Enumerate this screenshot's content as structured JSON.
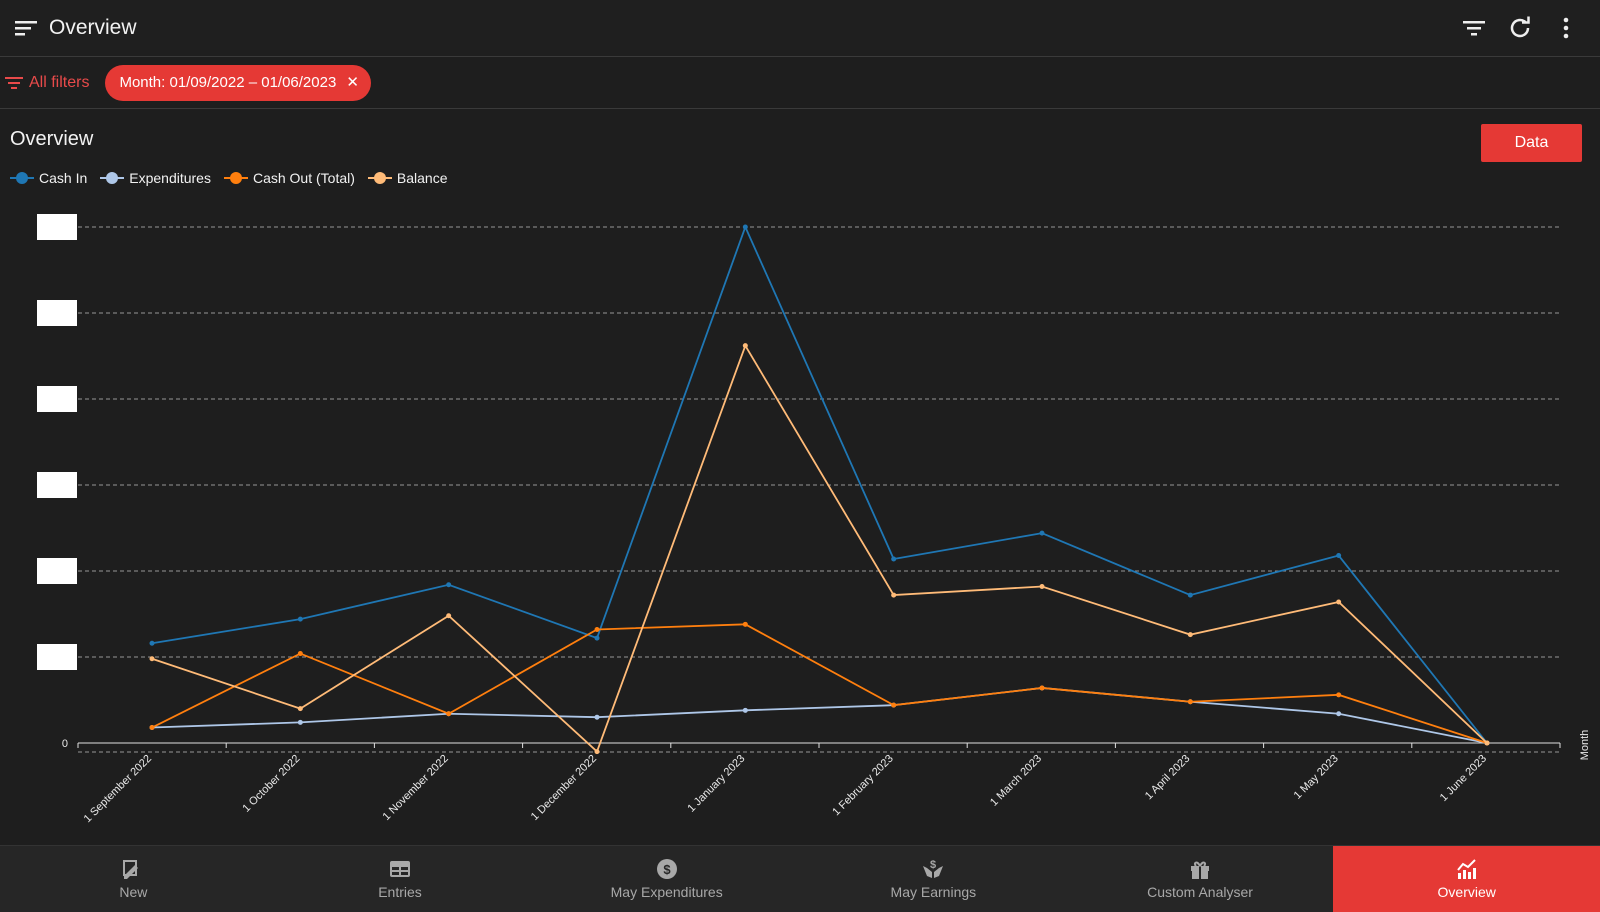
{
  "header": {
    "title": "Overview"
  },
  "filters": {
    "all_filters_label": "All filters",
    "active_chip": "Month: 01/09/2022 – 01/06/2023"
  },
  "card": {
    "title": "Overview",
    "data_button": "Data"
  },
  "colors": {
    "accent": "#e53935",
    "cash_in": "#1f77b4",
    "expenditures": "#aec7e8",
    "cash_out": "#ff7f0e",
    "balance": "#ffbb78"
  },
  "chart_data": {
    "type": "line",
    "x_label": "Month",
    "categories": [
      "1 September 2022",
      "1 October 2022",
      "1 November 2022",
      "1 December 2022",
      "1 January 2023",
      "1 February 2023",
      "1 March 2023",
      "1 April 2023",
      "1 May 2023",
      "1 June 2023"
    ],
    "y_ticks_visible": [
      "0"
    ],
    "y_tick_labels_redacted": true,
    "y_range": [
      -0.5,
      30
    ],
    "gridlines": [
      5,
      10,
      15,
      20,
      25,
      30
    ],
    "series": [
      {
        "name": "Cash In",
        "color": "#1f77b4",
        "values": [
          5.8,
          7.2,
          9.2,
          6.1,
          30.0,
          10.7,
          12.2,
          8.6,
          10.9,
          0.0
        ]
      },
      {
        "name": "Expenditures",
        "color": "#aec7e8",
        "values": [
          0.9,
          1.2,
          1.7,
          1.5,
          1.9,
          2.2,
          3.2,
          2.4,
          1.7,
          0.0
        ]
      },
      {
        "name": "Cash Out (Total)",
        "color": "#ff7f0e",
        "values": [
          0.9,
          5.2,
          1.7,
          6.6,
          6.9,
          2.2,
          3.2,
          2.4,
          2.8,
          0.0
        ]
      },
      {
        "name": "Balance",
        "color": "#ffbb78",
        "values": [
          4.9,
          2.0,
          7.4,
          -0.5,
          23.1,
          8.6,
          9.1,
          6.3,
          8.2,
          0.0
        ]
      }
    ]
  },
  "bottom_nav": [
    {
      "label": "New",
      "icon": "edit-icon"
    },
    {
      "label": "Entries",
      "icon": "table-icon"
    },
    {
      "label": "May Expenditures",
      "icon": "dollar-icon"
    },
    {
      "label": "May Earnings",
      "icon": "hands-dollar-icon"
    },
    {
      "label": "Custom Analyser",
      "icon": "gift-icon"
    },
    {
      "label": "Overview",
      "icon": "chart-icon",
      "active": true
    }
  ]
}
